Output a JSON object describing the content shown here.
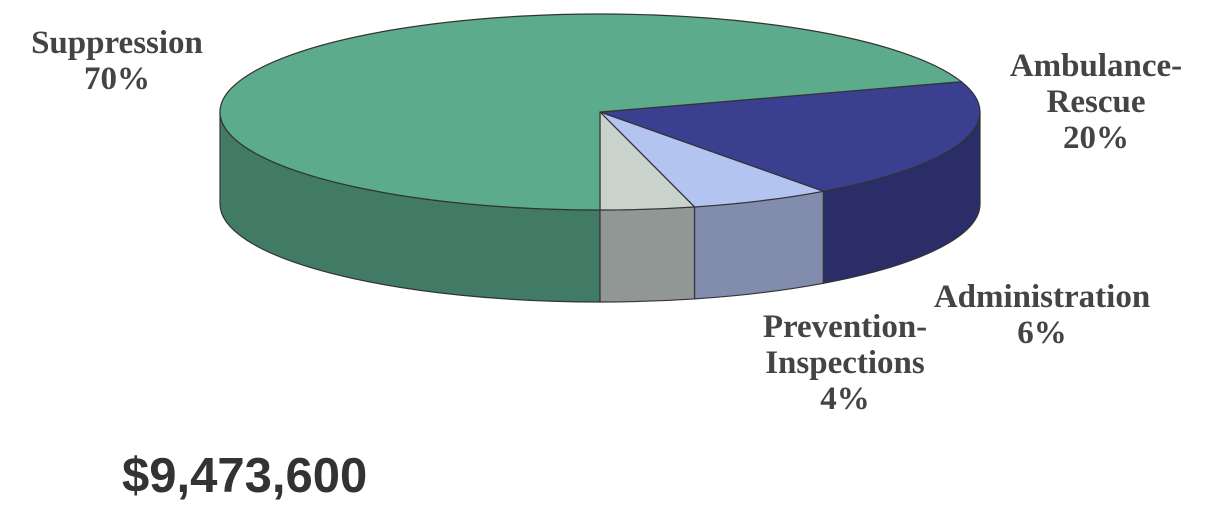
{
  "chart_data": {
    "type": "pie",
    "style": "3d",
    "slices": [
      {
        "key": "ambulance",
        "label_lines": [
          "Ambulance-",
          "Rescue",
          "20%"
        ],
        "value": 20,
        "color": "#3b3f8f"
      },
      {
        "key": "administration",
        "label_lines": [
          "Administration",
          "6%"
        ],
        "value": 6,
        "color": "#b4c4f0"
      },
      {
        "key": "prevention",
        "label_lines": [
          "Prevention-",
          "Inspections",
          "4%"
        ],
        "value": 4,
        "color": "#c9d2cd"
      },
      {
        "key": "suppression",
        "label_lines": [
          "Suppression",
          "70%"
        ],
        "value": 70,
        "color": "#5bab8c"
      }
    ],
    "legend": "none"
  },
  "total_label": "$9,473,600"
}
